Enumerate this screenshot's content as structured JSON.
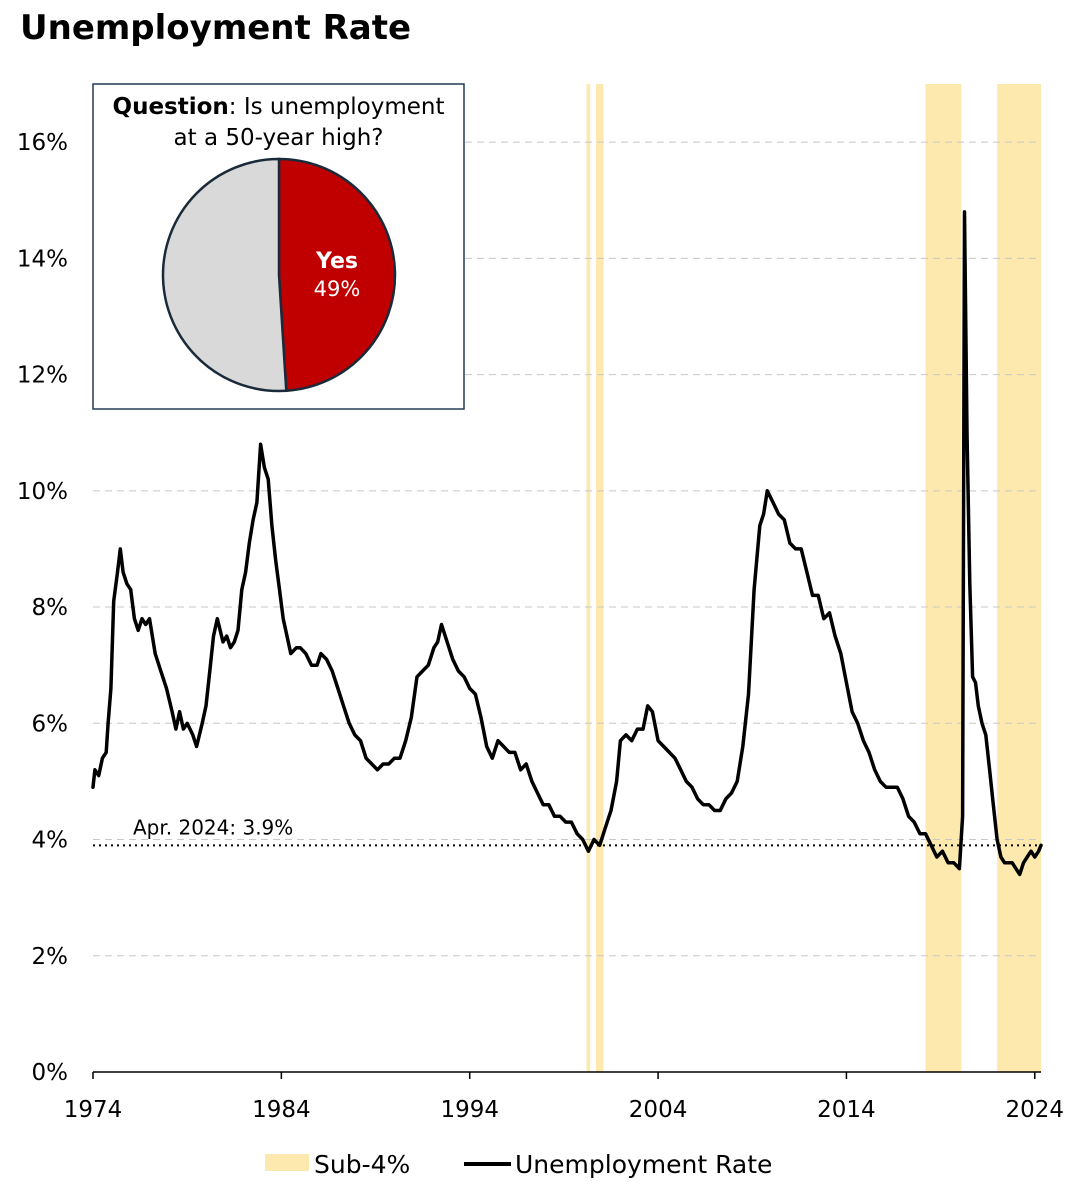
{
  "title": "Unemployment Rate",
  "chart_data": {
    "type": "line",
    "title": "Unemployment Rate",
    "xlabel": "",
    "ylabel": "",
    "xlim": [
      1974,
      2024.33
    ],
    "ylim": [
      0,
      17
    ],
    "x_ticks": [
      1974,
      1984,
      1994,
      2004,
      2014,
      2024
    ],
    "x_tick_labels": [
      "1974",
      "1984",
      "1994",
      "2004",
      "2014",
      "2024"
    ],
    "y_ticks": [
      0,
      2,
      4,
      6,
      8,
      10,
      12,
      14,
      16
    ],
    "y_tick_labels": [
      "0%",
      "2%",
      "4%",
      "6%",
      "8%",
      "10%",
      "12%",
      "14%",
      "16%"
    ],
    "grid": "horizontal dashed",
    "legend_position": "bottom",
    "series": [
      {
        "name": "Unemployment Rate",
        "color": "#000000",
        "points": [
          [
            1974.0,
            4.9
          ],
          [
            1974.1,
            5.2
          ],
          [
            1974.3,
            5.1
          ],
          [
            1974.5,
            5.4
          ],
          [
            1974.7,
            5.5
          ],
          [
            1974.8,
            6.0
          ],
          [
            1974.95,
            6.6
          ],
          [
            1975.1,
            8.1
          ],
          [
            1975.3,
            8.6
          ],
          [
            1975.45,
            9.0
          ],
          [
            1975.6,
            8.6
          ],
          [
            1975.8,
            8.4
          ],
          [
            1976.0,
            8.3
          ],
          [
            1976.2,
            7.8
          ],
          [
            1976.4,
            7.6
          ],
          [
            1976.6,
            7.8
          ],
          [
            1976.8,
            7.7
          ],
          [
            1977.0,
            7.8
          ],
          [
            1977.3,
            7.2
          ],
          [
            1977.6,
            6.9
          ],
          [
            1977.9,
            6.6
          ],
          [
            1978.2,
            6.2
          ],
          [
            1978.4,
            5.9
          ],
          [
            1978.6,
            6.2
          ],
          [
            1978.8,
            5.9
          ],
          [
            1979.0,
            6.0
          ],
          [
            1979.3,
            5.8
          ],
          [
            1979.5,
            5.6
          ],
          [
            1979.8,
            6.0
          ],
          [
            1980.0,
            6.3
          ],
          [
            1980.2,
            6.9
          ],
          [
            1980.4,
            7.5
          ],
          [
            1980.6,
            7.8
          ],
          [
            1980.9,
            7.4
          ],
          [
            1981.1,
            7.5
          ],
          [
            1981.3,
            7.3
          ],
          [
            1981.5,
            7.4
          ],
          [
            1981.7,
            7.6
          ],
          [
            1981.9,
            8.3
          ],
          [
            1982.1,
            8.6
          ],
          [
            1982.3,
            9.1
          ],
          [
            1982.5,
            9.5
          ],
          [
            1982.7,
            9.8
          ],
          [
            1982.9,
            10.8
          ],
          [
            1983.1,
            10.4
          ],
          [
            1983.3,
            10.2
          ],
          [
            1983.5,
            9.4
          ],
          [
            1983.7,
            8.8
          ],
          [
            1983.9,
            8.3
          ],
          [
            1984.1,
            7.8
          ],
          [
            1984.3,
            7.5
          ],
          [
            1984.5,
            7.2
          ],
          [
            1984.8,
            7.3
          ],
          [
            1985.0,
            7.3
          ],
          [
            1985.3,
            7.2
          ],
          [
            1985.6,
            7.0
          ],
          [
            1985.9,
            7.0
          ],
          [
            1986.1,
            7.2
          ],
          [
            1986.4,
            7.1
          ],
          [
            1986.7,
            6.9
          ],
          [
            1987.0,
            6.6
          ],
          [
            1987.3,
            6.3
          ],
          [
            1987.6,
            6.0
          ],
          [
            1987.9,
            5.8
          ],
          [
            1988.2,
            5.7
          ],
          [
            1988.5,
            5.4
          ],
          [
            1988.8,
            5.3
          ],
          [
            1989.1,
            5.2
          ],
          [
            1989.4,
            5.3
          ],
          [
            1989.7,
            5.3
          ],
          [
            1990.0,
            5.4
          ],
          [
            1990.3,
            5.4
          ],
          [
            1990.6,
            5.7
          ],
          [
            1990.9,
            6.1
          ],
          [
            1991.2,
            6.8
          ],
          [
            1991.5,
            6.9
          ],
          [
            1991.8,
            7.0
          ],
          [
            1992.1,
            7.3
          ],
          [
            1992.3,
            7.4
          ],
          [
            1992.5,
            7.7
          ],
          [
            1992.8,
            7.4
          ],
          [
            1993.1,
            7.1
          ],
          [
            1993.4,
            6.9
          ],
          [
            1993.7,
            6.8
          ],
          [
            1994.0,
            6.6
          ],
          [
            1994.3,
            6.5
          ],
          [
            1994.6,
            6.1
          ],
          [
            1994.9,
            5.6
          ],
          [
            1995.2,
            5.4
          ],
          [
            1995.5,
            5.7
          ],
          [
            1995.8,
            5.6
          ],
          [
            1996.1,
            5.5
          ],
          [
            1996.4,
            5.5
          ],
          [
            1996.7,
            5.2
          ],
          [
            1997.0,
            5.3
          ],
          [
            1997.3,
            5.0
          ],
          [
            1997.6,
            4.8
          ],
          [
            1997.9,
            4.6
          ],
          [
            1998.2,
            4.6
          ],
          [
            1998.5,
            4.4
          ],
          [
            1998.8,
            4.4
          ],
          [
            1999.1,
            4.3
          ],
          [
            1999.4,
            4.3
          ],
          [
            1999.7,
            4.1
          ],
          [
            2000.0,
            4.0
          ],
          [
            2000.3,
            3.8
          ],
          [
            2000.6,
            4.0
          ],
          [
            2000.9,
            3.9
          ],
          [
            2001.2,
            4.2
          ],
          [
            2001.5,
            4.5
          ],
          [
            2001.8,
            5.0
          ],
          [
            2002.0,
            5.7
          ],
          [
            2002.3,
            5.8
          ],
          [
            2002.6,
            5.7
          ],
          [
            2002.9,
            5.9
          ],
          [
            2003.2,
            5.9
          ],
          [
            2003.45,
            6.3
          ],
          [
            2003.7,
            6.2
          ],
          [
            2004.0,
            5.7
          ],
          [
            2004.3,
            5.6
          ],
          [
            2004.6,
            5.5
          ],
          [
            2004.9,
            5.4
          ],
          [
            2005.2,
            5.2
          ],
          [
            2005.5,
            5.0
          ],
          [
            2005.8,
            4.9
          ],
          [
            2006.1,
            4.7
          ],
          [
            2006.4,
            4.6
          ],
          [
            2006.7,
            4.6
          ],
          [
            2007.0,
            4.5
          ],
          [
            2007.3,
            4.5
          ],
          [
            2007.6,
            4.7
          ],
          [
            2007.9,
            4.8
          ],
          [
            2008.2,
            5.0
          ],
          [
            2008.5,
            5.6
          ],
          [
            2008.8,
            6.5
          ],
          [
            2009.1,
            8.3
          ],
          [
            2009.4,
            9.4
          ],
          [
            2009.6,
            9.6
          ],
          [
            2009.8,
            10.0
          ],
          [
            2010.1,
            9.8
          ],
          [
            2010.4,
            9.6
          ],
          [
            2010.7,
            9.5
          ],
          [
            2011.0,
            9.1
          ],
          [
            2011.3,
            9.0
          ],
          [
            2011.6,
            9.0
          ],
          [
            2011.9,
            8.6
          ],
          [
            2012.2,
            8.2
          ],
          [
            2012.5,
            8.2
          ],
          [
            2012.8,
            7.8
          ],
          [
            2013.1,
            7.9
          ],
          [
            2013.4,
            7.5
          ],
          [
            2013.7,
            7.2
          ],
          [
            2014.0,
            6.7
          ],
          [
            2014.3,
            6.2
          ],
          [
            2014.6,
            6.0
          ],
          [
            2014.9,
            5.7
          ],
          [
            2015.2,
            5.5
          ],
          [
            2015.5,
            5.2
          ],
          [
            2015.8,
            5.0
          ],
          [
            2016.1,
            4.9
          ],
          [
            2016.4,
            4.9
          ],
          [
            2016.7,
            4.9
          ],
          [
            2017.0,
            4.7
          ],
          [
            2017.3,
            4.4
          ],
          [
            2017.6,
            4.3
          ],
          [
            2017.9,
            4.1
          ],
          [
            2018.2,
            4.1
          ],
          [
            2018.5,
            3.9
          ],
          [
            2018.8,
            3.7
          ],
          [
            2019.1,
            3.8
          ],
          [
            2019.4,
            3.6
          ],
          [
            2019.7,
            3.6
          ],
          [
            2020.0,
            3.5
          ],
          [
            2020.17,
            4.4
          ],
          [
            2020.27,
            14.8
          ],
          [
            2020.4,
            11.0
          ],
          [
            2020.55,
            8.4
          ],
          [
            2020.7,
            6.8
          ],
          [
            2020.85,
            6.7
          ],
          [
            2021.0,
            6.3
          ],
          [
            2021.2,
            6.0
          ],
          [
            2021.4,
            5.8
          ],
          [
            2021.6,
            5.2
          ],
          [
            2021.8,
            4.6
          ],
          [
            2022.0,
            4.0
          ],
          [
            2022.2,
            3.7
          ],
          [
            2022.4,
            3.6
          ],
          [
            2022.6,
            3.6
          ],
          [
            2022.8,
            3.6
          ],
          [
            2023.0,
            3.5
          ],
          [
            2023.2,
            3.4
          ],
          [
            2023.4,
            3.6
          ],
          [
            2023.6,
            3.7
          ],
          [
            2023.8,
            3.8
          ],
          [
            2024.0,
            3.7
          ],
          [
            2024.2,
            3.8
          ],
          [
            2024.33,
            3.9
          ]
        ]
      }
    ],
    "shaded_regions": {
      "name": "Sub-4%",
      "color": "#fde9ad",
      "ranges": [
        [
          2000.2,
          2000.4
        ],
        [
          2000.7,
          2001.1
        ],
        [
          2018.2,
          2020.1
        ],
        [
          2022.0,
          2024.33
        ]
      ]
    },
    "reference_line": {
      "value": 3.9,
      "style": "dotted",
      "label": "Apr. 2024: 3.9%"
    },
    "inset": {
      "type": "pie",
      "title_bold": "Question",
      "title_line1": ": Is unemployment",
      "title_line2": "at a 50-year high?",
      "slices": [
        {
          "label": "Yes",
          "value": 49,
          "value_label": "49%",
          "color": "#c00000"
        },
        {
          "label": "",
          "value": 51,
          "value_label": "",
          "color": "#d9d9d9"
        }
      ]
    },
    "legend": [
      {
        "label": "Sub-4%",
        "type": "patch",
        "color": "#fde9ad"
      },
      {
        "label": "Unemployment Rate",
        "type": "line",
        "color": "#000000"
      }
    ]
  }
}
